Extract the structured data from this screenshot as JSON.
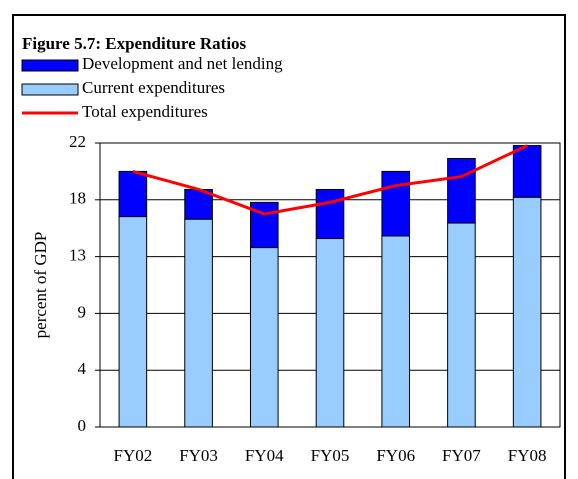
{
  "chart_data": {
    "type": "bar-line",
    "title": "Figure 5.7: Expenditure Ratios",
    "y_label": "percent of GDP",
    "categories": [
      "FY02",
      "FY03",
      "FY04",
      "FY05",
      "FY06",
      "FY07",
      "FY08"
    ],
    "series": [
      {
        "name": "Development and net lending",
        "color": "#0000ff",
        "kind": "bar",
        "values": [
          3.5,
          2.3,
          3.5,
          3.8,
          5.0,
          5.0,
          4.0
        ]
      },
      {
        "name": "Current expenditures",
        "color": "#99ccff",
        "kind": "bar",
        "values": [
          16.3,
          16.1,
          13.9,
          14.6,
          14.8,
          15.8,
          17.8
        ]
      },
      {
        "name": "Total expenditures",
        "color": "#ff0000",
        "kind": "line",
        "values": [
          19.8,
          18.4,
          16.5,
          17.4,
          18.7,
          19.4,
          21.8
        ]
      }
    ],
    "ylim": [
      0,
      22
    ],
    "yticks": [
      0,
      {
        "value": 4.4,
        "label": "4"
      },
      {
        "value": 8.8,
        "label": "9"
      },
      {
        "value": 13.2,
        "label": "13"
      },
      {
        "value": 17.6,
        "label": "18"
      },
      22
    ],
    "grid": true
  }
}
